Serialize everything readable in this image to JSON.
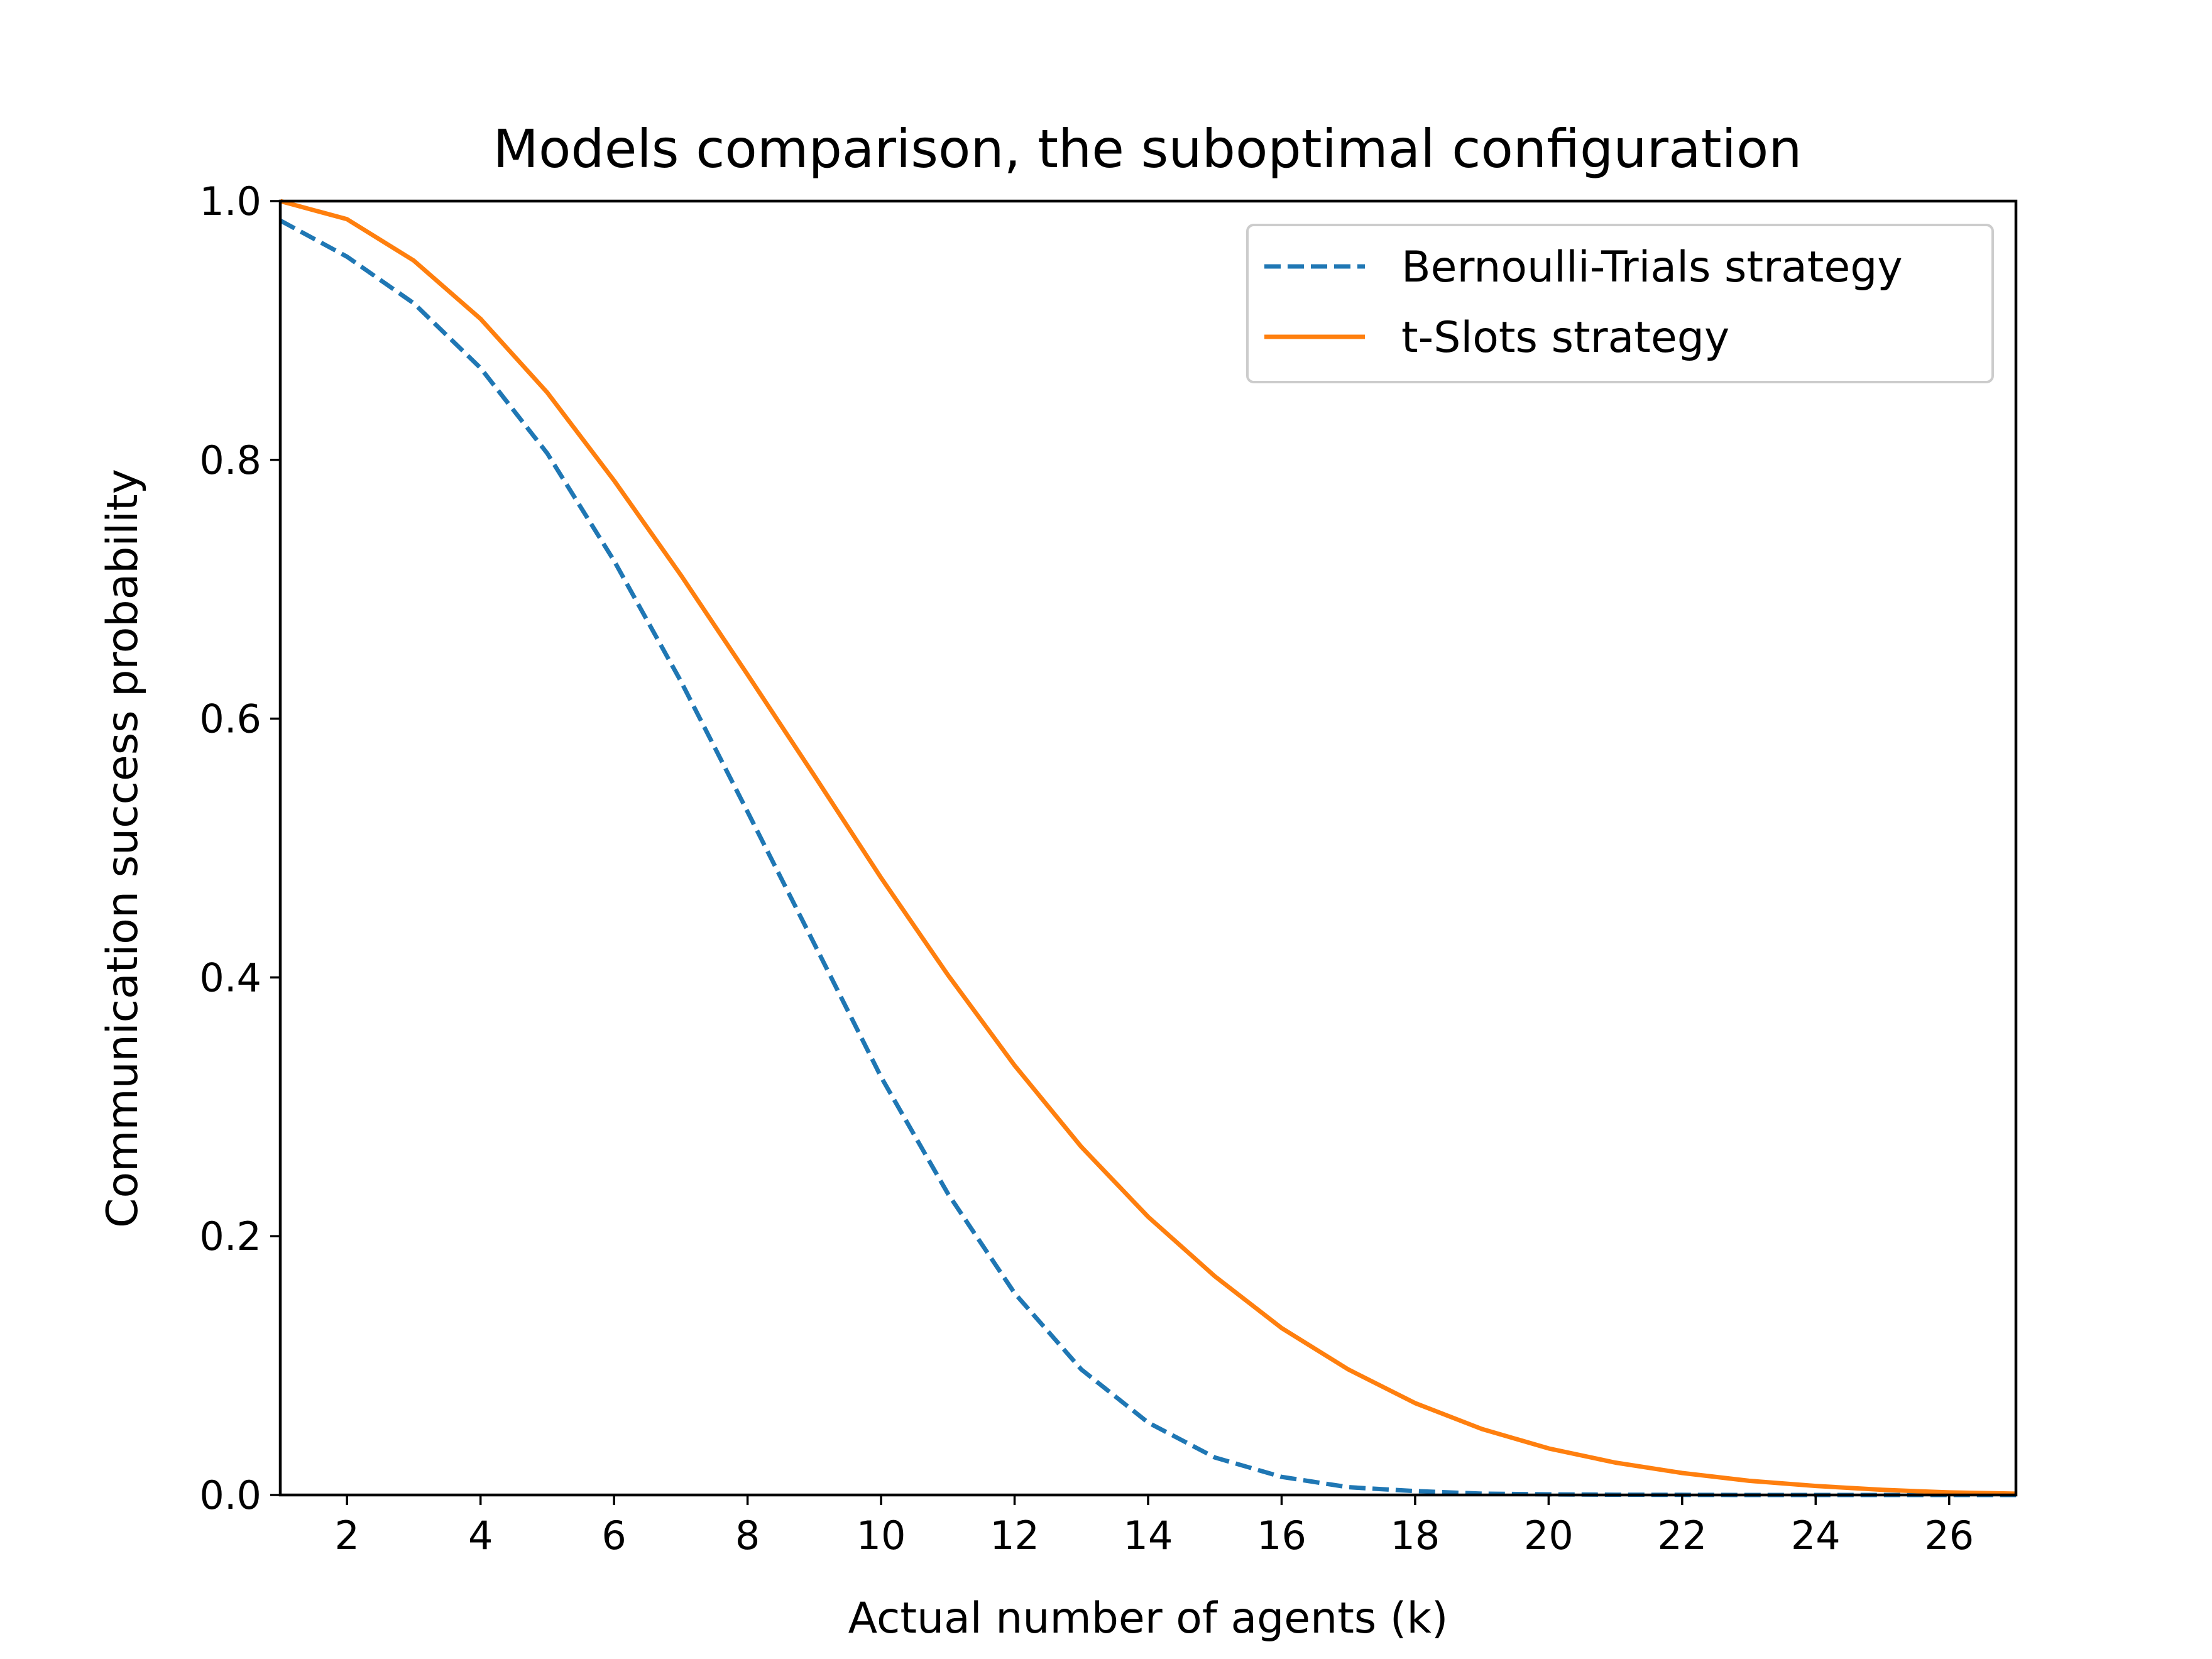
{
  "chart_data": {
    "type": "line",
    "title": "Models comparison, the suboptimal configuration",
    "xlabel": "Actual number of agents (k)",
    "ylabel": "Communication success probability",
    "xlim": [
      1,
      27
    ],
    "ylim": [
      0,
      1
    ],
    "xticks": [
      2,
      4,
      6,
      8,
      10,
      12,
      14,
      16,
      18,
      20,
      22,
      24,
      26
    ],
    "xtick_labels": [
      "2",
      "4",
      "6",
      "8",
      "10",
      "12",
      "14",
      "16",
      "18",
      "20",
      "22",
      "24",
      "26"
    ],
    "yticks": [
      0,
      0.2,
      0.4,
      0.6,
      0.8,
      1.0
    ],
    "ytick_labels": [
      "0.0",
      "0.2",
      "0.4",
      "0.6",
      "0.8",
      "1.0"
    ],
    "grid": false,
    "legend_position": "top-right",
    "x": [
      1,
      2,
      3,
      4,
      5,
      6,
      7,
      8,
      9,
      10,
      11,
      12,
      13,
      14,
      15,
      16,
      17,
      18,
      19,
      20,
      21,
      22,
      23,
      24,
      25,
      26,
      27
    ],
    "series": [
      {
        "name": "Bernoulli-Trials strategy",
        "color": "#1f77b4",
        "dash": "dashed",
        "values": [
          0.985,
          0.957,
          0.921,
          0.871,
          0.805,
          0.722,
          0.629,
          0.528,
          0.426,
          0.323,
          0.233,
          0.156,
          0.097,
          0.056,
          0.029,
          0.014,
          0.006,
          0.003,
          0.001,
          0.0005,
          0.0002,
          0.0001,
          0.0,
          0.0,
          0.0,
          0.0,
          0.0
        ]
      },
      {
        "name": "t-Slots strategy",
        "color": "#ff7f0e",
        "dash": "solid",
        "values": [
          1.0,
          0.986,
          0.954,
          0.909,
          0.852,
          0.784,
          0.711,
          0.634,
          0.556,
          0.477,
          0.402,
          0.332,
          0.269,
          0.215,
          0.169,
          0.129,
          0.097,
          0.071,
          0.051,
          0.036,
          0.025,
          0.017,
          0.011,
          0.007,
          0.004,
          0.002,
          0.001
        ]
      }
    ]
  }
}
